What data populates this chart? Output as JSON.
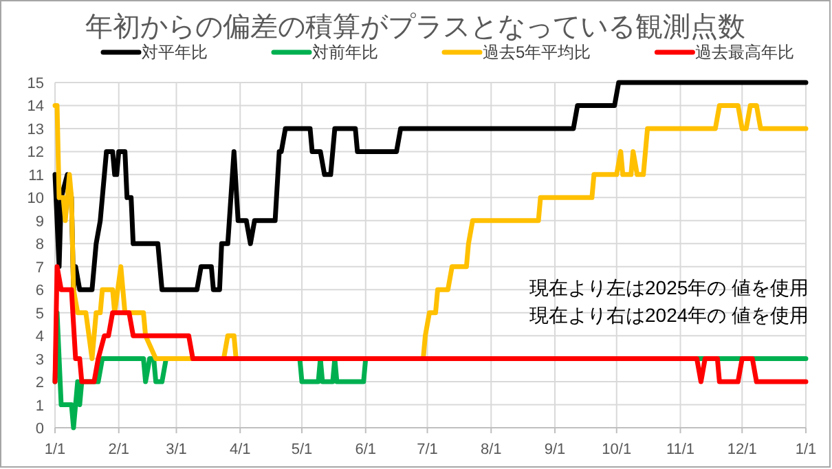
{
  "chart_data": {
    "type": "line",
    "title": "年初からの偏差の積算がプラスとなっている観測点数",
    "xlim": [
      "2025-01-01",
      "2026-01-01"
    ],
    "xticks": [
      {
        "value": "2025-01-01",
        "label": "1/1"
      },
      {
        "value": "2025-02-01",
        "label": "2/1"
      },
      {
        "value": "2025-03-01",
        "label": "3/1"
      },
      {
        "value": "2025-04-01",
        "label": "4/1"
      },
      {
        "value": "2025-05-01",
        "label": "5/1"
      },
      {
        "value": "2025-06-01",
        "label": "6/1"
      },
      {
        "value": "2025-07-01",
        "label": "7/1"
      },
      {
        "value": "2025-08-01",
        "label": "8/1"
      },
      {
        "value": "2025-09-01",
        "label": "9/1"
      },
      {
        "value": "2025-10-01",
        "label": "10/1"
      },
      {
        "value": "2025-11-01",
        "label": "11/1"
      },
      {
        "value": "2025-12-01",
        "label": "12/1"
      },
      {
        "value": "2026-01-01",
        "label": "1/1"
      }
    ],
    "ylim": [
      0,
      15
    ],
    "yticks": [
      0,
      1,
      2,
      3,
      4,
      5,
      6,
      7,
      8,
      9,
      10,
      11,
      12,
      13,
      14,
      15
    ],
    "grid": true,
    "legend": "top",
    "marker": "none",
    "line_style": "solid",
    "annotations": [
      "現在より左は2025年の 値を使用",
      "現在より右は2024年の 値を使用"
    ],
    "series": [
      {
        "name": "対平年比",
        "color": "#000000",
        "x": [
          "2025-01-01",
          "2025-01-03",
          "2025-01-04",
          "2025-01-07",
          "2025-01-09",
          "2025-01-10",
          "2025-01-11",
          "2025-01-13",
          "2025-01-19",
          "2025-01-21",
          "2025-01-23",
          "2025-01-26",
          "2025-01-29",
          "2025-01-30",
          "2025-01-31",
          "2025-02-01",
          "2025-02-04",
          "2025-02-05",
          "2025-02-07",
          "2025-02-08",
          "2025-02-20",
          "2025-02-22",
          "2025-03-11",
          "2025-03-13",
          "2025-03-18",
          "2025-03-19",
          "2025-03-22",
          "2025-03-23",
          "2025-03-26",
          "2025-03-29",
          "2025-03-31",
          "2025-04-04",
          "2025-04-06",
          "2025-04-08",
          "2025-04-18",
          "2025-04-20",
          "2025-04-21",
          "2025-04-23",
          "2025-05-05",
          "2025-05-06",
          "2025-05-10",
          "2025-05-12",
          "2025-05-15",
          "2025-05-17",
          "2025-05-27",
          "2025-05-28",
          "2025-06-16",
          "2025-06-18",
          "2025-09-10",
          "2025-09-12",
          "2025-09-30",
          "2025-10-02",
          "2026-01-01"
        ],
        "values": [
          11,
          7,
          10,
          11,
          10,
          6,
          7,
          6,
          6,
          8,
          9,
          12,
          12,
          11,
          11,
          12,
          12,
          10,
          10,
          8,
          8,
          6,
          6,
          7,
          7,
          6,
          6,
          8,
          8,
          12,
          9,
          9,
          8,
          9,
          9,
          12,
          12,
          13,
          13,
          12,
          12,
          11,
          11,
          13,
          13,
          12,
          12,
          13,
          13,
          14,
          14,
          15,
          15
        ]
      },
      {
        "name": "対前年比",
        "color": "#00b050",
        "x": [
          "2025-01-01",
          "2025-01-02",
          "2025-01-04",
          "2025-01-09",
          "2025-01-10",
          "2025-01-12",
          "2025-01-13",
          "2025-01-14",
          "2025-01-22",
          "2025-01-24",
          "2025-02-13",
          "2025-02-14",
          "2025-02-16",
          "2025-02-18",
          "2025-02-19",
          "2025-02-22",
          "2025-02-24",
          "2025-04-30",
          "2025-05-01",
          "2025-05-09",
          "2025-05-10",
          "2025-05-11",
          "2025-05-16",
          "2025-05-17",
          "2025-05-18",
          "2025-05-31",
          "2025-06-01",
          "2026-01-01"
        ],
        "values": [
          2,
          5,
          1,
          1,
          0,
          2,
          1,
          2,
          2,
          3,
          3,
          2,
          3,
          3,
          2,
          2,
          3,
          3,
          2,
          2,
          3,
          2,
          2,
          3,
          2,
          2,
          3,
          3
        ]
      },
      {
        "name": "過去5年平均比",
        "color": "#ffc000",
        "x": [
          "2025-01-01",
          "2025-01-02",
          "2025-01-03",
          "2025-01-05",
          "2025-01-06",
          "2025-01-08",
          "2025-01-09",
          "2025-01-10",
          "2025-01-12",
          "2025-01-16",
          "2025-01-19",
          "2025-01-21",
          "2025-01-23",
          "2025-01-24",
          "2025-01-29",
          "2025-01-30",
          "2025-02-02",
          "2025-02-04",
          "2025-02-13",
          "2025-02-14",
          "2025-02-19",
          "2025-03-24",
          "2025-03-26",
          "2025-03-29",
          "2025-03-30",
          "2025-06-29",
          "2025-06-30",
          "2025-07-02",
          "2025-07-05",
          "2025-07-06",
          "2025-07-11",
          "2025-07-13",
          "2025-07-20",
          "2025-07-21",
          "2025-07-23",
          "2025-08-24",
          "2025-08-25",
          "2025-09-19",
          "2025-09-20",
          "2025-10-01",
          "2025-10-03",
          "2025-10-04",
          "2025-10-08",
          "2025-10-09",
          "2025-10-11",
          "2025-10-14",
          "2025-10-16",
          "2025-11-18",
          "2025-11-20",
          "2025-11-29",
          "2025-12-01",
          "2025-12-03",
          "2025-12-05",
          "2025-12-08",
          "2025-12-10",
          "2026-01-01"
        ],
        "values": [
          14,
          14,
          10,
          10,
          9,
          11,
          10,
          6,
          5,
          5,
          3,
          5,
          5,
          6,
          6,
          5,
          7,
          5,
          5,
          4,
          3,
          3,
          4,
          4,
          3,
          3,
          4,
          5,
          5,
          6,
          6,
          7,
          7,
          8,
          9,
          9,
          10,
          10,
          11,
          11,
          12,
          11,
          11,
          12,
          11,
          11,
          13,
          13,
          14,
          14,
          13,
          13,
          14,
          14,
          13,
          13
        ]
      },
      {
        "name": "過去最高年比",
        "color": "#ff0000",
        "x": [
          "2025-01-01",
          "2025-01-02",
          "2025-01-04",
          "2025-01-09",
          "2025-01-11",
          "2025-01-13",
          "2025-01-14",
          "2025-01-20",
          "2025-01-22",
          "2025-01-25",
          "2025-01-27",
          "2025-01-29",
          "2025-02-06",
          "2025-02-08",
          "2025-03-07",
          "2025-03-09",
          "2025-11-09",
          "2025-11-11",
          "2025-11-13",
          "2025-11-19",
          "2025-11-20",
          "2025-11-29",
          "2025-12-01",
          "2025-12-06",
          "2025-12-08",
          "2026-01-01"
        ],
        "values": [
          2,
          7,
          6,
          6,
          3,
          3,
          2,
          2,
          3,
          4,
          4,
          5,
          5,
          4,
          4,
          3,
          3,
          2,
          3,
          3,
          2,
          2,
          3,
          3,
          2,
          2
        ]
      }
    ]
  }
}
